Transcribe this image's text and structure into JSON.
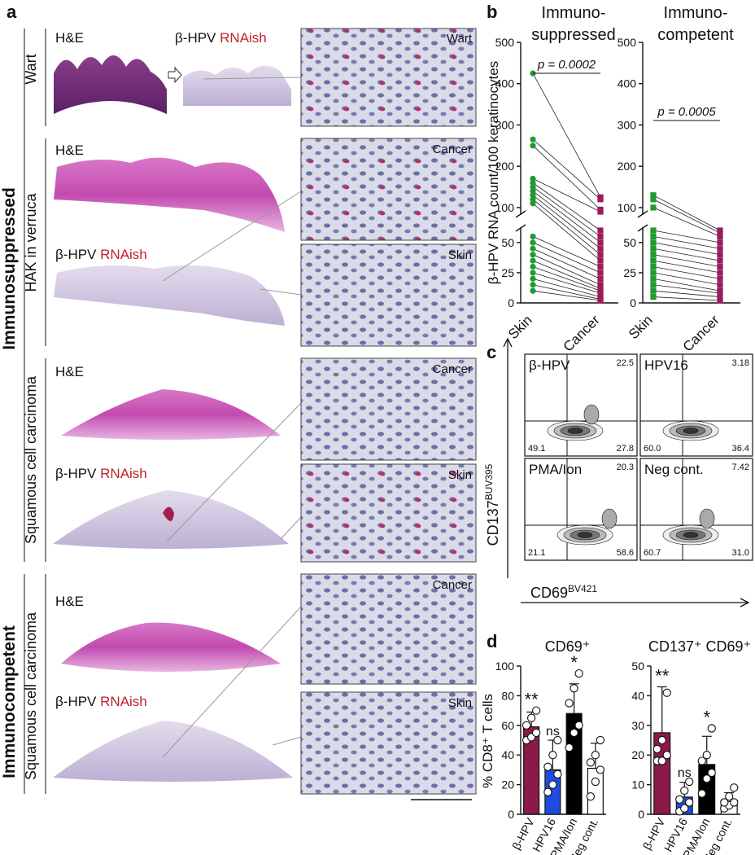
{
  "panel_a": {
    "label": "a",
    "groups": [
      "Immunosuppressed",
      "Immunocompetent"
    ],
    "rows": [
      {
        "name": "Wart",
        "he": "H&E",
        "rna_prefix": "β-HPV",
        "rna_suffix": "RNAish",
        "insets": [
          "Wart"
        ]
      },
      {
        "name": "HAK in verruca",
        "he": "H&E",
        "rna_prefix": "β-HPV",
        "rna_suffix": "RNAish",
        "insets": [
          "Cancer",
          "Skin"
        ]
      },
      {
        "name": "Squamous cell carcinoma",
        "he": "H&E",
        "rna_prefix": "β-HPV",
        "rna_suffix": "RNAish",
        "insets": [
          "Cancer",
          "Skin"
        ]
      },
      {
        "name": "Squamous cell carcinoma",
        "he": "H&E",
        "rna_prefix": "β-HPV",
        "rna_suffix": "RNAish",
        "insets": [
          "Cancer",
          "Skin"
        ]
      }
    ]
  },
  "panel_labels": {
    "b": "b",
    "c": "c",
    "d": "d"
  },
  "panel_c": {
    "ylabel": "CD137",
    "ylabel_sup": "BUV395",
    "xlabel": "CD69",
    "xlabel_sup": "BV421",
    "plots": [
      {
        "name": "β-HPV",
        "upper_right": "22.5",
        "lower_left": "49.1",
        "lower_right": "27.8"
      },
      {
        "name": "HPV16",
        "upper_right": "3.18",
        "lower_left": "60.0",
        "lower_right": "36.4"
      },
      {
        "name": "PMA/Ion",
        "upper_right": "20.3",
        "lower_left": "21.1",
        "lower_right": "58.6"
      },
      {
        "name": "Neg cont.",
        "upper_right": "7.42",
        "lower_left": "60.7",
        "lower_right": "31.0"
      }
    ]
  },
  "chart_data": [
    {
      "type": "paired",
      "title": [
        "Immuno-",
        "suppressed"
      ],
      "ylabel": "β-HPV RNA count/100 keratinocytes",
      "annotation": "p = 0.0002",
      "ylim": [
        0,
        500
      ],
      "ybreak": [
        60,
        90
      ],
      "yticks": [
        0,
        25,
        50,
        100,
        200,
        300,
        400,
        500
      ],
      "series": [
        {
          "name": "Skin",
          "color": "#1f9a2e",
          "values": [
            425,
            265,
            250,
            170,
            160,
            150,
            140,
            130,
            120,
            110,
            55,
            50,
            45,
            40,
            35,
            30,
            25,
            20,
            15,
            10
          ]
        },
        {
          "name": "Cancer",
          "color": "#9c1b5a",
          "values": [
            125,
            120,
            95,
            90,
            60,
            55,
            50,
            45,
            40,
            35,
            30,
            25,
            20,
            15,
            12,
            10,
            8,
            5,
            3,
            2
          ]
        }
      ]
    },
    {
      "type": "paired",
      "title": [
        "Immuno-",
        "competent"
      ],
      "annotation": "p = 0.0005",
      "ylim": [
        0,
        500
      ],
      "ybreak": [
        60,
        90
      ],
      "yticks": [
        0,
        25,
        50,
        100,
        200,
        300,
        400,
        500
      ],
      "series": [
        {
          "name": "Skin",
          "color": "#1f9a2e",
          "values": [
            130,
            120,
            100,
            60,
            55,
            50,
            45,
            40,
            35,
            30,
            25,
            20,
            15,
            10,
            5
          ]
        },
        {
          "name": "Cancer",
          "color": "#9c1b5a",
          "values": [
            60,
            58,
            55,
            50,
            45,
            40,
            35,
            30,
            25,
            20,
            15,
            10,
            8,
            5,
            2
          ]
        }
      ]
    },
    {
      "type": "bar",
      "title": "CD69⁺",
      "ylabel": "% CD8⁺ T cells",
      "categories": [
        "β-HPV",
        "HPV16",
        "PMA/Ion",
        "Neg cont."
      ],
      "colors": [
        "#8b1a4a",
        "#1f4ce0",
        "#000000",
        "#ffffff"
      ],
      "values": [
        59,
        30,
        68,
        31
      ],
      "errors": [
        10,
        20,
        20,
        17
      ],
      "points": [
        [
          50,
          52,
          55,
          60,
          65,
          70
        ],
        [
          15,
          20,
          27,
          32,
          40,
          50
        ],
        [
          45,
          55,
          60,
          75,
          85,
          95
        ],
        [
          12,
          22,
          30,
          35,
          40,
          50
        ]
      ],
      "annotations": [
        "**",
        "ns",
        "*",
        null
      ],
      "ylim": [
        0,
        100
      ],
      "yticks": [
        0,
        20,
        40,
        60,
        80,
        100
      ]
    },
    {
      "type": "bar",
      "title": "CD137⁺ CD69⁺",
      "categories": [
        "β-HPV",
        "HPV16",
        "PMA/Ion",
        "Neg cont."
      ],
      "colors": [
        "#8b1a4a",
        "#1f4ce0",
        "#000000",
        "#ffffff"
      ],
      "values": [
        27.5,
        5.8,
        16.8,
        4.8
      ],
      "errors": [
        15.5,
        5,
        9.5,
        2.5
      ],
      "points": [
        [
          18,
          18,
          20,
          22,
          25,
          41
        ],
        [
          1,
          2,
          4,
          5,
          8,
          11
        ],
        [
          7,
          12,
          14,
          18,
          20,
          29
        ],
        [
          2,
          3,
          4,
          4,
          6,
          9
        ]
      ],
      "annotations": [
        "**",
        "ns",
        "*",
        null
      ],
      "ylim": [
        0,
        50
      ],
      "yticks": [
        0,
        10,
        20,
        30,
        40,
        50
      ]
    }
  ]
}
